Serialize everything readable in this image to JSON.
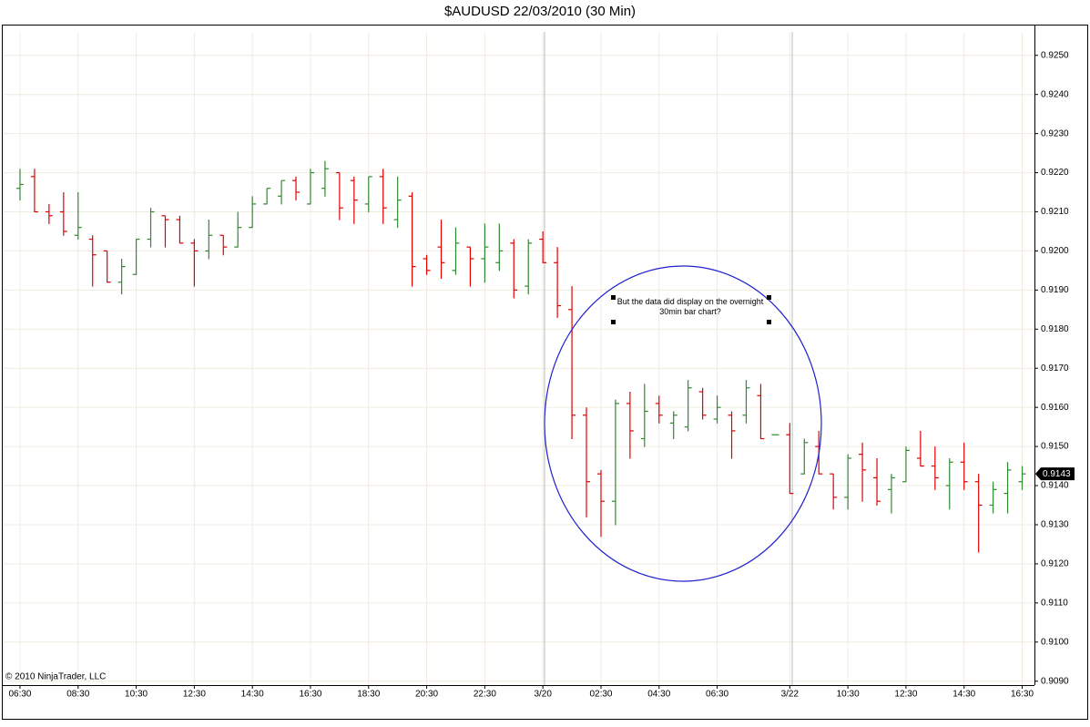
{
  "chart_data": {
    "type": "ohlc",
    "title": "$AUDUSD  22/03/2010 (30 Min)",
    "categories": [
      "06:30",
      null,
      null,
      null,
      "08:30",
      null,
      null,
      null,
      "10:30",
      null,
      null,
      null,
      "12:30",
      null,
      null,
      null,
      "14:30",
      null,
      null,
      null,
      "16:30",
      null,
      null,
      null,
      "18:30",
      null,
      null,
      null,
      "20:30",
      null,
      null,
      null,
      "22:30",
      null,
      null,
      null,
      "3/20",
      null,
      null,
      null,
      "02:30",
      null,
      null,
      null,
      "04:30",
      null,
      null,
      null,
      "06:30",
      null,
      null,
      null,
      null,
      "3/22",
      null,
      null,
      null,
      "10:30",
      null,
      null,
      null,
      "12:30",
      null,
      null,
      null,
      "14:30",
      null,
      null,
      null,
      "16:30"
    ],
    "open": [
      0.9216,
      0.9219,
      0.921,
      0.921,
      0.9204,
      0.9203,
      0.92,
      0.9192,
      0.9194,
      0.9203,
      0.9209,
      0.9208,
      0.9202,
      0.92,
      0.9204,
      0.9201,
      0.9206,
      0.9212,
      0.9214,
      0.9218,
      0.9212,
      0.9216,
      0.922,
      0.9218,
      0.9212,
      0.9219,
      0.9208,
      0.9214,
      0.9198,
      0.9201,
      0.9195,
      0.9201,
      0.9198,
      0.9197,
      0.9202,
      0.9191,
      0.9203,
      0.9197,
      0.9185,
      0.9158,
      0.9143,
      0.9136,
      0.9161,
      0.9152,
      0.9161,
      0.9156,
      0.9155,
      0.9164,
      0.9157,
      0.9158,
      0.9158,
      0.9163,
      0.9153,
      0.9153,
      0.9143,
      0.915,
      0.9143,
      0.9137,
      0.9148,
      0.9142,
      0.9139,
      0.9141,
      0.9147,
      0.9145,
      0.914,
      0.9146,
      0.9141,
      0.9135,
      0.9138,
      0.9141
    ],
    "high": [
      0.9221,
      0.9221,
      0.9212,
      0.9215,
      0.9215,
      0.9204,
      0.92,
      0.9198,
      0.9203,
      0.9211,
      0.9209,
      0.9209,
      0.9203,
      0.9208,
      0.9204,
      0.921,
      0.9214,
      0.9216,
      0.9218,
      0.9219,
      0.9221,
      0.9223,
      0.922,
      0.9219,
      0.9219,
      0.9221,
      0.9219,
      0.9215,
      0.9199,
      0.9208,
      0.9206,
      0.9201,
      0.9207,
      0.9207,
      0.9203,
      0.9203,
      0.9205,
      0.9201,
      0.9191,
      0.916,
      0.9144,
      0.9162,
      0.9164,
      0.9166,
      0.9163,
      0.9159,
      0.9167,
      0.9165,
      0.9163,
      0.9159,
      0.9167,
      0.9166,
      0.9153,
      0.9156,
      0.9152,
      0.9154,
      0.9143,
      0.9148,
      0.9151,
      0.9147,
      0.9143,
      0.915,
      0.9154,
      0.915,
      0.9147,
      0.9151,
      0.9143,
      0.9141,
      0.9146,
      0.9145
    ],
    "low": [
      0.9213,
      0.921,
      0.9207,
      0.9204,
      0.9203,
      0.9191,
      0.9192,
      0.9189,
      0.9194,
      0.9201,
      0.9201,
      0.9202,
      0.9191,
      0.9198,
      0.9199,
      0.9201,
      0.9206,
      0.9212,
      0.9212,
      0.9213,
      0.9212,
      0.9214,
      0.9208,
      0.9207,
      0.921,
      0.9207,
      0.9206,
      0.9191,
      0.9194,
      0.9193,
      0.9194,
      0.9191,
      0.9192,
      0.9195,
      0.9188,
      0.9189,
      0.9197,
      0.9183,
      0.9152,
      0.9132,
      0.9127,
      0.913,
      0.9147,
      0.915,
      0.9156,
      0.9152,
      0.9154,
      0.9157,
      0.9156,
      0.9147,
      0.9156,
      0.9152,
      0.9153,
      0.9138,
      0.9143,
      0.9143,
      0.9134,
      0.9134,
      0.9136,
      0.9135,
      0.9133,
      0.9141,
      0.9145,
      0.9139,
      0.9134,
      0.9139,
      0.9123,
      0.9133,
      0.9133,
      0.9139
    ],
    "close": [
      0.9217,
      0.921,
      0.9209,
      0.9205,
      0.9206,
      0.9199,
      0.9192,
      0.9196,
      0.9203,
      0.921,
      0.9208,
      0.9202,
      0.92,
      0.9204,
      0.9201,
      0.9206,
      0.9212,
      0.9216,
      0.9218,
      0.9215,
      0.922,
      0.9221,
      0.9211,
      0.9213,
      0.9219,
      0.9211,
      0.9213,
      0.9196,
      0.9195,
      0.9197,
      0.9202,
      0.9198,
      0.9201,
      0.92,
      0.919,
      0.9202,
      0.9197,
      0.9186,
      0.9158,
      0.9141,
      0.9136,
      0.9161,
      0.9154,
      0.9159,
      0.9158,
      0.9158,
      0.9165,
      0.9158,
      0.916,
      0.9154,
      0.9165,
      0.9152,
      0.9153,
      0.9138,
      0.9151,
      0.9143,
      0.9137,
      0.9147,
      0.9144,
      0.9136,
      0.9142,
      0.9149,
      0.9145,
      0.9142,
      0.9146,
      0.9141,
      0.9135,
      0.9139,
      0.9144,
      0.9143
    ],
    "up_color": "#2f8a2f",
    "down_color": "#e00000",
    "ylim": [
      0.9089,
      0.9256
    ],
    "yticks": [
      {
        "value": 0.909,
        "label": "0.9090"
      },
      {
        "value": 0.91,
        "label": "0.9100"
      },
      {
        "value": 0.911,
        "label": "0.9110"
      },
      {
        "value": 0.912,
        "label": "0.9120"
      },
      {
        "value": 0.913,
        "label": "0.9130"
      },
      {
        "value": 0.914,
        "label": "0.9140"
      },
      {
        "value": 0.915,
        "label": "0.9150"
      },
      {
        "value": 0.916,
        "label": "0.9160"
      },
      {
        "value": 0.917,
        "label": "0.9170"
      },
      {
        "value": 0.918,
        "label": "0.9180"
      },
      {
        "value": 0.919,
        "label": "0.9190"
      },
      {
        "value": 0.92,
        "label": "0.9200"
      },
      {
        "value": 0.921,
        "label": "0.9210"
      },
      {
        "value": 0.922,
        "label": "0.9220"
      },
      {
        "value": 0.923,
        "label": "0.9230"
      },
      {
        "value": 0.924,
        "label": "0.9240"
      },
      {
        "value": 0.925,
        "label": "0.9250"
      }
    ],
    "last_price": 0.9143,
    "grid": true,
    "annotation": "But the data did display on the overnight 30min bar chart?",
    "copyright": "© 2010 NinjaTrader, LLC"
  }
}
